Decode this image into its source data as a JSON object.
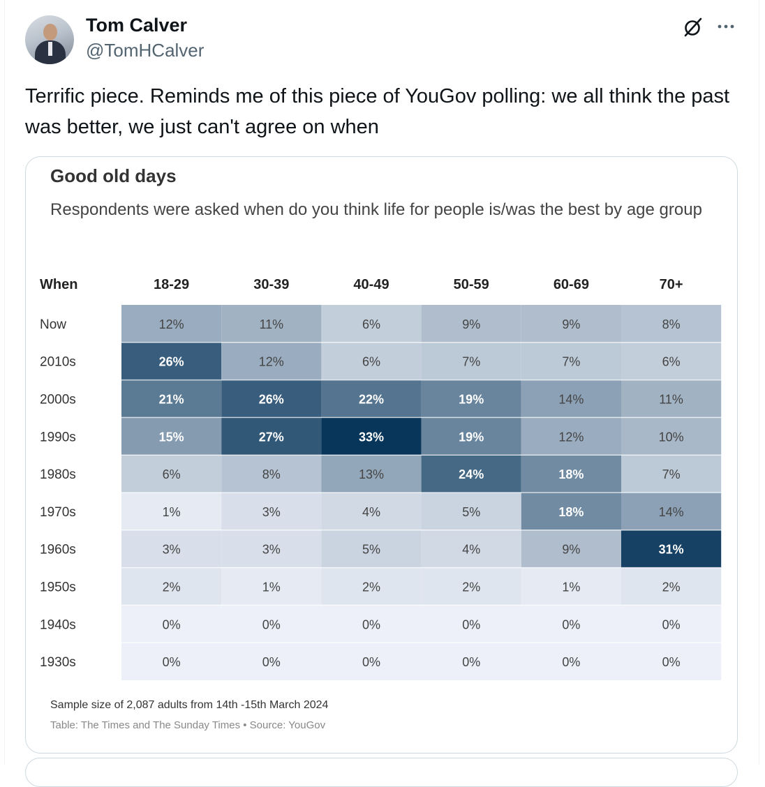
{
  "author": {
    "name": "Tom Calver",
    "handle": "@TomHCalver"
  },
  "tweet": {
    "text": "Terrific piece. Reminds me of this piece of YouGov polling: we all think the past was better, we just can't agree on when"
  },
  "icons": {
    "grok": "grok-icon",
    "more": "more-icon"
  },
  "chart": {
    "title": "Good old days",
    "subtitle": "Respondents were asked when do you think life for people is/was the best by age group",
    "footnote": "Sample size of 2,087 adults from 14th -15th March 2024",
    "source": "Table: The Times and The Sunday Times • Source: YouGov"
  },
  "chart_data": {
    "type": "heatmap",
    "corner_label": "When",
    "columns": [
      "18-29",
      "30-39",
      "40-49",
      "50-59",
      "60-69",
      "70+"
    ],
    "rows": [
      "Now",
      "2010s",
      "2000s",
      "1990s",
      "1980s",
      "1970s",
      "1960s",
      "1950s",
      "1940s",
      "1930s"
    ],
    "values": [
      [
        12,
        11,
        6,
        9,
        9,
        8
      ],
      [
        26,
        12,
        6,
        7,
        7,
        6
      ],
      [
        21,
        26,
        22,
        19,
        14,
        11
      ],
      [
        15,
        27,
        33,
        19,
        12,
        10
      ],
      [
        6,
        8,
        13,
        24,
        18,
        7
      ],
      [
        1,
        3,
        4,
        5,
        18,
        14
      ],
      [
        3,
        3,
        5,
        4,
        9,
        31
      ],
      [
        2,
        1,
        2,
        2,
        1,
        2
      ],
      [
        0,
        0,
        0,
        0,
        0,
        0
      ],
      [
        0,
        0,
        0,
        0,
        0,
        0
      ]
    ],
    "unit": "%",
    "value_range": [
      0,
      33
    ],
    "colors": {
      "low": "#edf0f8",
      "high": "#08365a",
      "header_text": "#222222",
      "label_text": "#333333"
    }
  }
}
